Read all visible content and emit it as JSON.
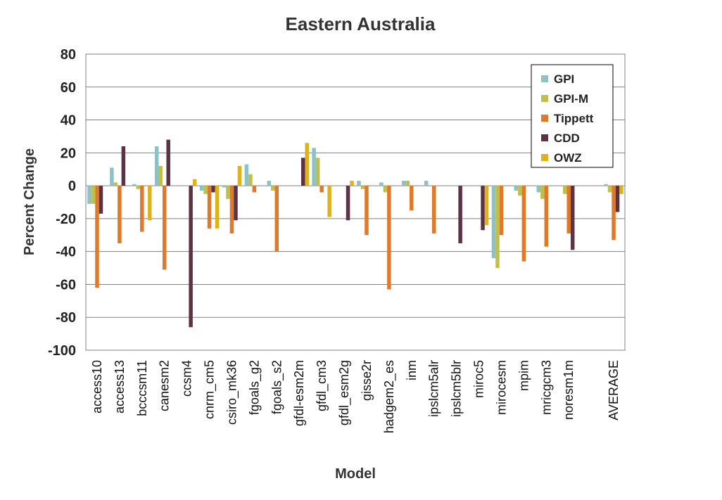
{
  "chart_data": {
    "type": "bar",
    "title": "Eastern Australia",
    "xlabel": "Model",
    "ylabel": "Percent Change",
    "ylim": [
      -100,
      80
    ],
    "yticks": [
      80,
      60,
      40,
      20,
      0,
      -20,
      -40,
      -60,
      -80,
      -100
    ],
    "grid": true,
    "legend_position": "top-right",
    "categories": [
      "access10",
      "access13",
      "bcccsm11",
      "canesm2",
      "ccsm4",
      "cnrm_cm5",
      "csiro_mk36",
      "fgoals_g2",
      "fgoals_s2",
      "gfdl-esm2m",
      "gfdl_cm3",
      "gfdl_esm2g",
      "gisse2r",
      "hadgem2_es",
      "inm",
      "ipslcm5alr",
      "ipslcm5blr",
      "miroc5",
      "mirocesm",
      "mpim",
      "mricgcm3",
      "noresm1m",
      "",
      "AVERAGE"
    ],
    "series": [
      {
        "name": "GPI",
        "color": "#8ec1c6",
        "values": [
          -11,
          11,
          1,
          24,
          0,
          -3,
          -1,
          13,
          3,
          0,
          23,
          0,
          3,
          2,
          3,
          3,
          0,
          0,
          -44,
          -3,
          -4,
          0,
          null,
          1
        ]
      },
      {
        "name": "GPI-M",
        "color": "#bfbf4d",
        "values": [
          -11,
          2,
          -2,
          12,
          0,
          -5,
          -8,
          7,
          -3,
          0,
          17,
          0,
          -2,
          -4,
          3,
          0,
          0,
          0,
          -50,
          -6,
          -8,
          -5,
          null,
          -4
        ]
      },
      {
        "name": "Tippett",
        "color": "#e07a2a",
        "values": [
          -62,
          -35,
          -28,
          -51,
          0,
          -26,
          -29,
          -4,
          -40,
          0,
          -4,
          0,
          -30,
          -63,
          -15,
          -29,
          0,
          0,
          -30,
          -46,
          -37,
          -29,
          null,
          -33
        ]
      },
      {
        "name": "CDD",
        "color": "#5e3245",
        "values": [
          -17,
          24,
          0,
          28,
          -86,
          -4,
          -21,
          0,
          0,
          17,
          0,
          -21,
          0,
          0,
          0,
          0,
          -35,
          -27,
          0,
          0,
          0,
          -39,
          null,
          -16
        ]
      },
      {
        "name": "OWZ",
        "color": "#e0b21a",
        "values": [
          0,
          0,
          -21,
          0,
          4,
          -26,
          12,
          0,
          0,
          26,
          -19,
          3,
          0,
          0,
          0,
          0,
          0,
          -24,
          0,
          0,
          0,
          0,
          null,
          -5
        ]
      }
    ]
  }
}
